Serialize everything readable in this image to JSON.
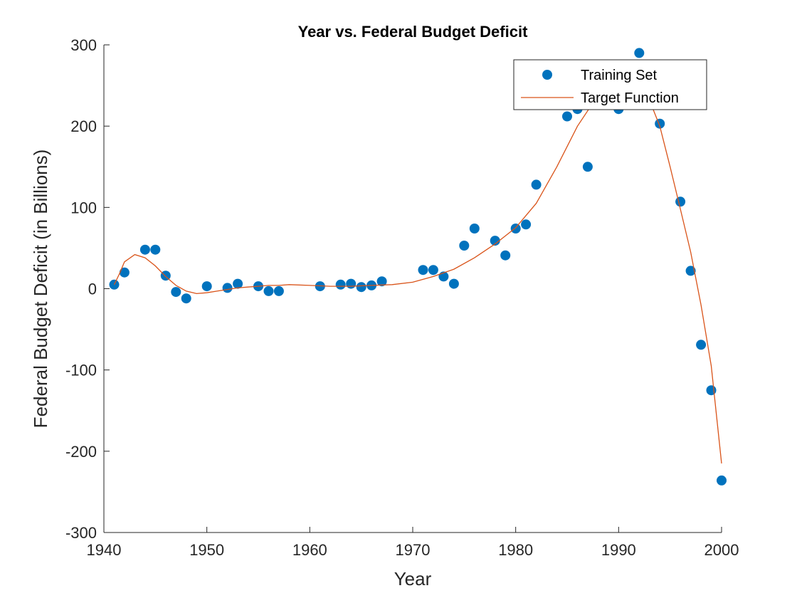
{
  "chart_data": {
    "type": "scatter",
    "title": "Year vs. Federal Budget Deficit",
    "xlabel": "Year",
    "ylabel": "Federal Budget Deficit (in Billions)",
    "xlim": [
      1940,
      2000
    ],
    "ylim": [
      -300,
      300
    ],
    "xticks": [
      1940,
      1950,
      1960,
      1970,
      1980,
      1990,
      2000
    ],
    "yticks": [
      -300,
      -200,
      -100,
      0,
      100,
      200,
      300
    ],
    "grid": false,
    "legend": "top-right",
    "series": [
      {
        "name": "Training Set",
        "kind": "markers",
        "color": "#0072BD",
        "x": [
          1941,
          1942,
          1944,
          1945,
          1946,
          1947,
          1948,
          1950,
          1952,
          1953,
          1955,
          1956,
          1957,
          1961,
          1963,
          1964,
          1965,
          1966,
          1967,
          1971,
          1972,
          1973,
          1974,
          1975,
          1976,
          1978,
          1979,
          1980,
          1981,
          1982,
          1985,
          1986,
          1987,
          1990,
          1992,
          1994,
          1996,
          1997,
          1998,
          1999,
          2000
        ],
        "y": [
          5,
          20,
          48,
          48,
          16,
          -4,
          -12,
          3,
          1,
          6,
          3,
          -3,
          -3,
          3,
          5,
          6,
          2,
          4,
          9,
          23,
          23,
          15,
          6,
          53,
          74,
          59,
          41,
          74,
          79,
          128,
          212,
          221,
          150,
          221,
          290,
          203,
          107,
          22,
          -69,
          -125,
          -236
        ]
      },
      {
        "name": "Target Function",
        "kind": "line",
        "color": "#D95319",
        "x": [
          1941,
          1941.5,
          1942,
          1943,
          1944,
          1945,
          1946,
          1947,
          1948,
          1949,
          1950,
          1951,
          1952,
          1953,
          1954,
          1955,
          1956,
          1957,
          1958,
          1960,
          1962,
          1964,
          1966,
          1968,
          1970,
          1972,
          1974,
          1976,
          1978,
          1980,
          1982,
          1984,
          1986,
          1988,
          1990,
          1991,
          1992,
          1993,
          1994,
          1995,
          1996,
          1997,
          1998,
          1999,
          2000
        ],
        "y": [
          5,
          18,
          33,
          42,
          38,
          28,
          15,
          4,
          -3,
          -6,
          -5,
          -3,
          -1,
          1,
          2,
          3,
          4,
          4,
          5,
          4,
          3,
          3,
          4,
          5,
          8,
          15,
          24,
          38,
          55,
          75,
          105,
          150,
          200,
          238,
          255,
          252,
          243,
          232,
          200,
          150,
          98,
          45,
          -20,
          -95,
          -215
        ]
      }
    ]
  }
}
